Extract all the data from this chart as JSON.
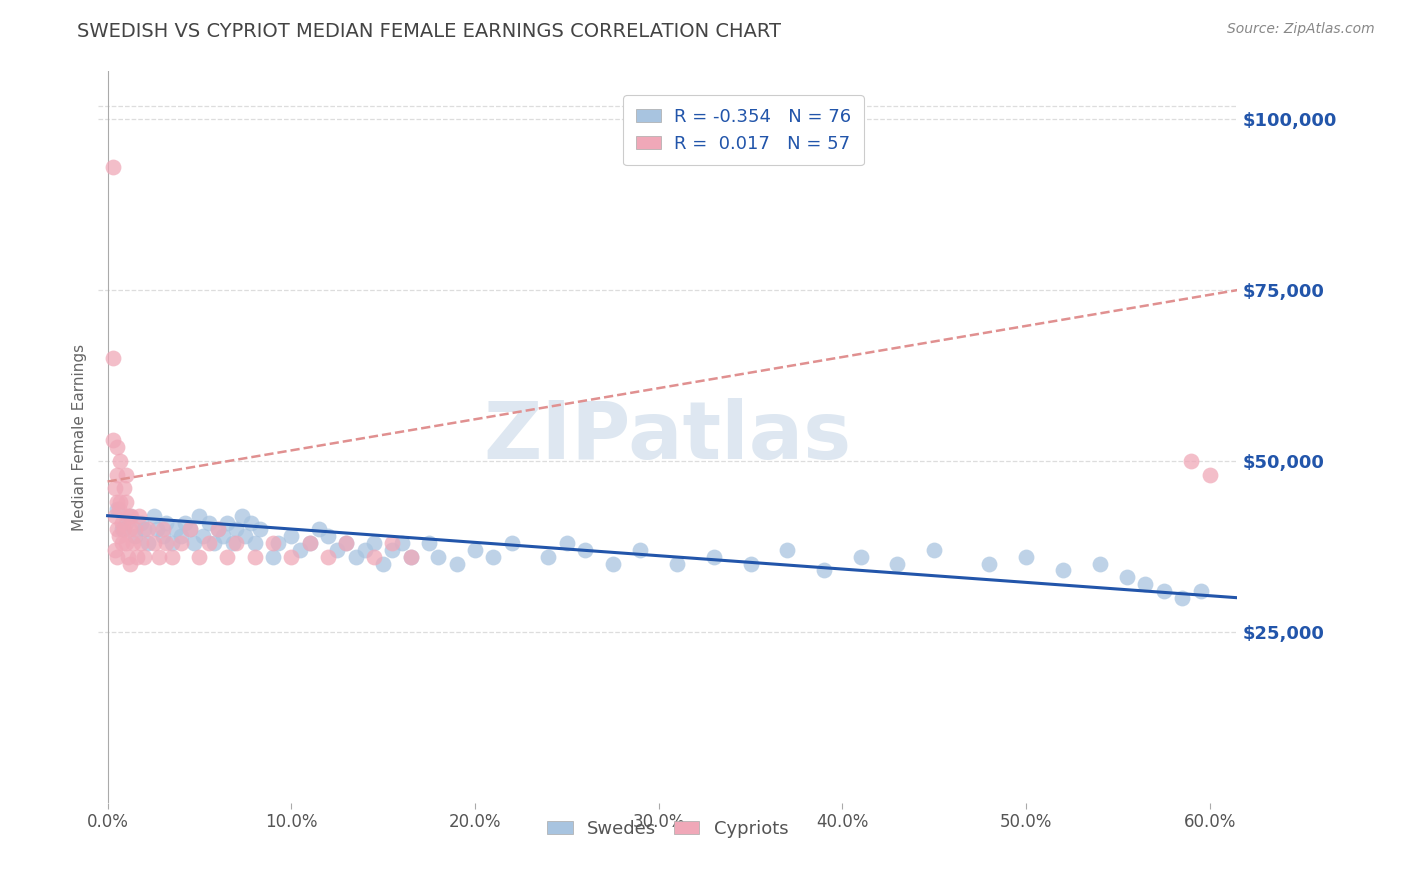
{
  "title": "SWEDISH VS CYPRIOT MEDIAN FEMALE EARNINGS CORRELATION CHART",
  "source": "Source: ZipAtlas.com",
  "ylabel": "Median Female Earnings",
  "xlabel_ticks": [
    "0.0%",
    "10.0%",
    "20.0%",
    "30.0%",
    "40.0%",
    "50.0%",
    "60.0%"
  ],
  "ytick_labels": [
    "$25,000",
    "$50,000",
    "$75,000",
    "$100,000"
  ],
  "ytick_values": [
    25000,
    50000,
    75000,
    100000
  ],
  "xlim": [
    -0.005,
    0.615
  ],
  "ylim": [
    0,
    107000
  ],
  "legend_blue_label": "R = -0.354   N = 76",
  "legend_pink_label": "R =  0.017   N = 57",
  "watermark": "ZIPatlas",
  "watermark_color": "#c8d8e8",
  "blue_scatter_color": "#a8c4e0",
  "pink_scatter_color": "#f0a8b8",
  "blue_line_color": "#2255aa",
  "pink_line_color": "#e09090",
  "title_color": "#444444",
  "axis_label_color": "#666666",
  "ytick_color": "#2255aa",
  "grid_color": "#dddddd",
  "background_color": "#ffffff",
  "swedes_x": [
    0.005,
    0.008,
    0.01,
    0.012,
    0.015,
    0.018,
    0.02,
    0.022,
    0.025,
    0.027,
    0.03,
    0.032,
    0.035,
    0.037,
    0.04,
    0.042,
    0.045,
    0.047,
    0.05,
    0.052,
    0.055,
    0.058,
    0.06,
    0.063,
    0.065,
    0.068,
    0.07,
    0.073,
    0.075,
    0.078,
    0.08,
    0.083,
    0.09,
    0.093,
    0.1,
    0.105,
    0.11,
    0.115,
    0.12,
    0.125,
    0.13,
    0.135,
    0.14,
    0.145,
    0.15,
    0.155,
    0.16,
    0.165,
    0.175,
    0.18,
    0.19,
    0.2,
    0.21,
    0.22,
    0.24,
    0.25,
    0.26,
    0.275,
    0.29,
    0.31,
    0.33,
    0.35,
    0.37,
    0.39,
    0.41,
    0.43,
    0.45,
    0.48,
    0.5,
    0.52,
    0.54,
    0.555,
    0.565,
    0.575,
    0.585,
    0.595
  ],
  "swedes_y": [
    43000,
    40000,
    41000,
    42000,
    39000,
    41000,
    40000,
    38000,
    42000,
    40000,
    39000,
    41000,
    38000,
    40000,
    39000,
    41000,
    40000,
    38000,
    42000,
    39000,
    41000,
    38000,
    40000,
    39000,
    41000,
    38000,
    40000,
    42000,
    39000,
    41000,
    38000,
    40000,
    36000,
    38000,
    39000,
    37000,
    38000,
    40000,
    39000,
    37000,
    38000,
    36000,
    37000,
    38000,
    35000,
    37000,
    38000,
    36000,
    38000,
    36000,
    35000,
    37000,
    36000,
    38000,
    36000,
    38000,
    37000,
    35000,
    37000,
    35000,
    36000,
    35000,
    37000,
    34000,
    36000,
    35000,
    37000,
    35000,
    36000,
    34000,
    35000,
    33000,
    32000,
    31000,
    30000,
    31000
  ],
  "cypriots_x": [
    0.003,
    0.003,
    0.003,
    0.004,
    0.004,
    0.004,
    0.005,
    0.005,
    0.005,
    0.005,
    0.005,
    0.006,
    0.006,
    0.007,
    0.007,
    0.008,
    0.008,
    0.009,
    0.009,
    0.01,
    0.01,
    0.01,
    0.011,
    0.011,
    0.012,
    0.012,
    0.013,
    0.014,
    0.015,
    0.016,
    0.017,
    0.018,
    0.02,
    0.022,
    0.025,
    0.028,
    0.03,
    0.032,
    0.035,
    0.04,
    0.045,
    0.05,
    0.055,
    0.06,
    0.065,
    0.07,
    0.08,
    0.09,
    0.1,
    0.11,
    0.12,
    0.13,
    0.145,
    0.155,
    0.165,
    0.59,
    0.6
  ],
  "cypriots_y": [
    93000,
    65000,
    53000,
    46000,
    42000,
    37000,
    52000,
    48000,
    44000,
    40000,
    36000,
    43000,
    39000,
    50000,
    44000,
    41000,
    38000,
    46000,
    40000,
    48000,
    44000,
    38000,
    42000,
    36000,
    40000,
    35000,
    42000,
    38000,
    40000,
    36000,
    42000,
    38000,
    36000,
    40000,
    38000,
    36000,
    40000,
    38000,
    36000,
    38000,
    40000,
    36000,
    38000,
    40000,
    36000,
    38000,
    36000,
    38000,
    36000,
    38000,
    36000,
    38000,
    36000,
    38000,
    36000,
    50000,
    48000
  ],
  "blue_trend_x0": 0.0,
  "blue_trend_x1": 0.615,
  "blue_trend_y0": 42000,
  "blue_trend_y1": 30000,
  "pink_trend_x0": 0.0,
  "pink_trend_x1": 0.615,
  "pink_trend_y0": 47000,
  "pink_trend_y1": 75000
}
